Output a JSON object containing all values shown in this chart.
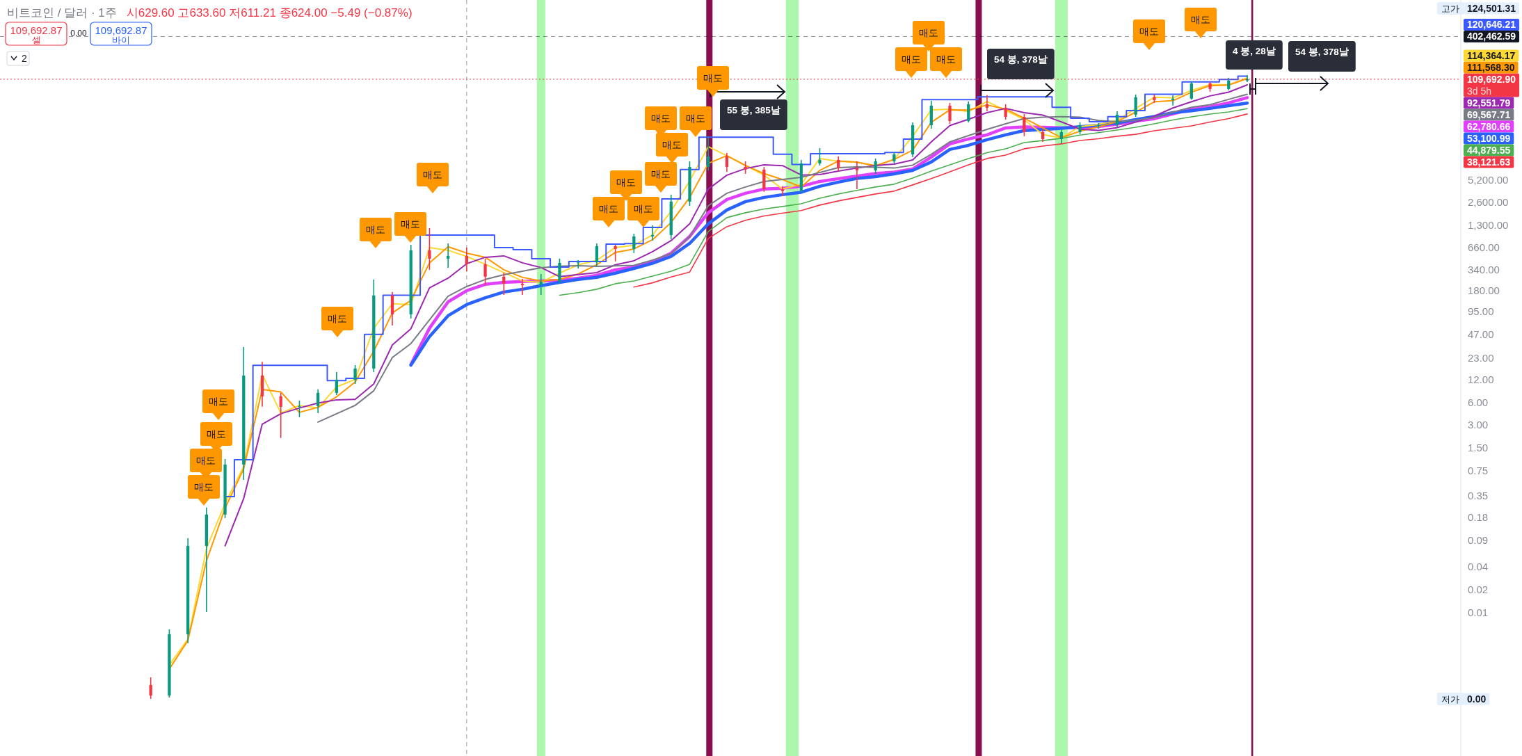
{
  "chart_data": {
    "type": "candlestick",
    "title": "비트코인 / 달러 · 1주",
    "subtitle": "시629.60 고633.60 저611.21 종624.00 −5.49 (−0.87%)",
    "categories": [
      null,
      null,
      null,
      null,
      null,
      null,
      null,
      null,
      null,
      null,
      null,
      null,
      null,
      null,
      null,
      null,
      null,
      null,
      null,
      null,
      null,
      null,
      null,
      null,
      null,
      null,
      null,
      null,
      null,
      null,
      null,
      null,
      null,
      null,
      null,
      null,
      null,
      null,
      null,
      null,
      null,
      null,
      null,
      null,
      null,
      null,
      null,
      null,
      null,
      null,
      null,
      null,
      null,
      null,
      null,
      null,
      null,
      null,
      null,
      null
    ],
    "ohlc": [
      [
        0.0011,
        0.00139,
        0.00072,
        0.0008
      ],
      [
        0.0008,
        0.00598,
        0.00075,
        0.00515
      ],
      [
        0.00515,
        0.0954,
        0.00392,
        0.0753
      ],
      [
        0.0753,
        0.242,
        0.0101,
        0.196
      ],
      [
        0.196,
        1.06,
        0.176,
        0.897
      ],
      [
        0.897,
        31.9,
        0.562,
        13.4
      ],
      [
        13.4,
        20.5,
        5.19,
        7.13
      ],
      [
        7.13,
        7.92,
        2.01,
        5.19
      ],
      [
        5.19,
        6.28,
        3.78,
        5.3
      ],
      [
        5.3,
        8.81,
        4.29,
        7.92
      ],
      [
        7.92,
        14.9,
        7.43,
        11.8
      ],
      [
        11.8,
        18.4,
        10.4,
        16.6
      ],
      [
        16.6,
        249,
        14.9,
        153
      ],
      [
        153,
        170,
        61.6,
        86.4
      ],
      [
        86.4,
        715,
        76.1,
        604
      ],
      [
        604,
        1188,
        334,
        469
      ],
      [
        469,
        746,
        356,
        510
      ],
      [
        510,
        657,
        320,
        396
      ],
      [
        396,
        469,
        210,
        271
      ],
      [
        271,
        307,
        156,
        219
      ],
      [
        219,
        254,
        156,
        210
      ],
      [
        210,
        294,
        156,
        233
      ],
      [
        233,
        469,
        219,
        413
      ],
      [
        413,
        449,
        348,
        418
      ],
      [
        418,
        746,
        379,
        685
      ],
      [
        685,
        715,
        431,
        630
      ],
      [
        630,
        1003,
        555,
        921
      ],
      [
        921,
        1293,
        812,
        961
      ],
      [
        961,
        3281,
        846,
        2656
      ],
      [
        2656,
        9050,
        2340,
        7640
      ],
      [
        7640,
        19400,
        6870,
        10490
      ],
      [
        10490,
        11660,
        6590,
        7640
      ],
      [
        7640,
        9050,
        6180,
        7030
      ],
      [
        7030,
        7640,
        3570,
        3886
      ],
      [
        3886,
        4230,
        3146,
        3650
      ],
      [
        3650,
        9440,
        3420,
        8490
      ],
      [
        8490,
        13510,
        7970,
        9440
      ],
      [
        9440,
        10490,
        6730,
        7330
      ],
      [
        7330,
        9050,
        3886,
        6870
      ],
      [
        6870,
        9850,
        6180,
        9050
      ],
      [
        9050,
        11910,
        8490,
        11170
      ],
      [
        11170,
        29560,
        10280,
        27150
      ],
      [
        27150,
        57030,
        24420,
        49170
      ],
      [
        49170,
        53500,
        28330,
        30830
      ],
      [
        30830,
        55830,
        29560,
        51290
      ],
      [
        51290,
        67520,
        41480,
        46130
      ],
      [
        46130,
        51290,
        32160,
        35000
      ],
      [
        35000,
        38090,
        19400,
        21970
      ],
      [
        21970,
        23920,
        16350,
        17800
      ],
      [
        17800,
        23920,
        15670,
        21970
      ],
      [
        21970,
        29560,
        20620,
        27150
      ],
      [
        27150,
        28930,
        24420,
        27300
      ],
      [
        27300,
        41480,
        25480,
        37270
      ],
      [
        37270,
        68970,
        35000,
        63400
      ],
      [
        63400,
        68970,
        53500,
        58240
      ],
      [
        58240,
        67520,
        49170,
        60780
      ],
      [
        60780,
        103000,
        59000,
        96680
      ],
      [
        96680,
        100840,
        75050,
        81660
      ],
      [
        81660,
        114600,
        78290,
        105250
      ],
      [
        105250,
        124501.31,
        100840,
        109692.9
      ]
    ],
    "colors": [
      "#f23645",
      "#089981",
      "#089981",
      "#089981",
      "#089981",
      "#089981",
      "#f23645",
      "#f23645",
      "#089981",
      "#089981",
      "#089981",
      "#089981",
      "#089981",
      "#f23645",
      "#089981",
      "#f23645",
      "#089981",
      "#f23645",
      "#f23645",
      "#f23645",
      "#f23645",
      "#089981",
      "#089981",
      "#089981",
      "#089981",
      "#f23645",
      "#089981",
      "#089981",
      "#089981",
      "#089981",
      "#089981",
      "#f23645",
      "#f23645",
      "#f23645",
      "#f23645",
      "#089981",
      "#089981",
      "#f23645",
      "#f23645",
      "#089981",
      "#089981",
      "#089981",
      "#089981",
      "#f23645",
      "#089981",
      "#f23645",
      "#f23645",
      "#f23645",
      "#f23645",
      "#089981",
      "#089981",
      "#089981",
      "#089981",
      "#089981",
      "#f23645",
      "#089981",
      "#089981",
      "#f23645",
      "#089981",
      "#089981"
    ],
    "series": [
      {
        "type": "line",
        "color": "#fdd835",
        "values": [
          null,
          0.00202,
          0.00444,
          0.0701,
          0.275,
          0.846,
          13.8,
          4.29,
          5.41,
          5.0,
          9.5,
          11.9,
          56.6,
          119,
          116,
          657,
          604,
          501,
          396,
          307,
          238,
          228,
          302,
          389,
          446,
          657,
          703,
          961,
          1977,
          5010,
          14110,
          10710,
          7970,
          5930,
          3890,
          4510,
          9850,
          9050,
          8860,
          7810,
          9650,
          19390,
          43300,
          44220,
          40930,
          55830,
          42390,
          32160,
          20420,
          18370,
          26020,
          27730,
          31470,
          45180,
          63400,
          62070,
          78290,
          93270,
          92690,
          114364.17
        ]
      },
      {
        "type": "line",
        "color": "#ff9800",
        "values": [
          null,
          0.00179,
          0.00426,
          0.0481,
          0.237,
          0.789,
          8.8,
          8.16,
          4.38,
          5.11,
          7.02,
          11.0,
          28.1,
          90.1,
          132,
          413,
          673,
          555,
          489,
          334,
          265,
          238,
          249,
          294,
          389,
          567,
          630,
          833,
          1409,
          3016,
          8490,
          10710,
          7970,
          6230,
          5190,
          4140,
          6870,
          9110,
          8800,
          7930,
          9540,
          12690,
          29560,
          43300,
          42930,
          50220,
          44220,
          33550,
          24940,
          18560,
          22590,
          25810,
          30180,
          40330,
          55330,
          57030,
          73800,
          90190,
          91850,
          111568.3
        ]
      },
      {
        "type": "line",
        "color": "#9c27b0",
        "values": [
          null,
          null,
          null,
          null,
          0.0757,
          0.318,
          3.06,
          4.2,
          5.0,
          5.82,
          6.41,
          6.51,
          10.4,
          34.0,
          55.7,
          193,
          259,
          402,
          489,
          510,
          413,
          358,
          271,
          289,
          307,
          389,
          440,
          579,
          812,
          1351,
          3890,
          5930,
          7250,
          8140,
          7930,
          5960,
          6050,
          6730,
          7370,
          7970,
          8310,
          9440,
          16350,
          26870,
          32430,
          39730,
          45180,
          39730,
          36900,
          29990,
          24070,
          23170,
          25170,
          29740,
          35730,
          45760,
          55330,
          66100,
          74090,
          92551.79
        ]
      },
      {
        "type": "line",
        "color": "#787b86",
        "values": [
          null,
          null,
          null,
          null,
          null,
          null,
          null,
          null,
          null,
          3.26,
          4.2,
          5.41,
          8.44,
          23.2,
          35.5,
          72.9,
          150,
          201,
          249,
          288,
          320,
          356,
          373,
          379,
          371,
          376,
          383,
          449,
          546,
          921,
          2340,
          3420,
          4140,
          4900,
          5220,
          5560,
          6450,
          7480,
          7640,
          7560,
          7370,
          8050,
          11170,
          16350,
          19780,
          23920,
          28330,
          33200,
          34630,
          35070,
          34630,
          31350,
          30180,
          31640,
          34240,
          40250,
          46840,
          50670,
          59490,
          69567.71
        ]
      },
      {
        "type": "line",
        "color": "#e040fb",
        "values": [
          null,
          null,
          null,
          null,
          null,
          null,
          null,
          null,
          null,
          null,
          null,
          null,
          null,
          null,
          18.8,
          56.6,
          126,
          177,
          215,
          228,
          234,
          238,
          243,
          259,
          282,
          334,
          363,
          423,
          555,
          921,
          1894,
          2830,
          3420,
          3890,
          3990,
          4230,
          4900,
          5340,
          5770,
          6250,
          6520,
          7170,
          10280,
          15350,
          17800,
          20220,
          24940,
          25750,
          25480,
          25060,
          25210,
          26020,
          28020,
          30830,
          33050,
          38170,
          44220,
          47630,
          53500,
          62780.66
        ]
      },
      {
        "type": "line",
        "color": "#2962ff",
        "values": [
          null,
          null,
          null,
          null,
          null,
          null,
          null,
          null,
          null,
          null,
          null,
          null,
          null,
          null,
          18.4,
          43.9,
          82.8,
          116,
          143,
          170,
          185,
          206,
          228,
          249,
          266,
          302,
          348,
          406,
          501,
          746,
          1351,
          2060,
          2656,
          3016,
          3281,
          3530,
          4230,
          4800,
          5370,
          5680,
          6180,
          6870,
          8860,
          12960,
          14710,
          17420,
          20220,
          23030,
          23820,
          24630,
          25920,
          27150,
          29060,
          32160,
          35440,
          39730,
          42130,
          45180,
          48960,
          53100.99
        ]
      },
      {
        "type": "line",
        "color": "#4caf50",
        "values": [
          null,
          null,
          null,
          null,
          null,
          null,
          null,
          null,
          null,
          null,
          null,
          null,
          null,
          null,
          null,
          null,
          null,
          null,
          null,
          null,
          null,
          null,
          154,
          167,
          185,
          219,
          238,
          276,
          320,
          396,
          1068,
          1633,
          1894,
          2120,
          2290,
          2490,
          2950,
          3350,
          3730,
          4140,
          4510,
          5440,
          6730,
          8140,
          9850,
          11780,
          13240,
          16000,
          16980,
          18180,
          20070,
          21610,
          23420,
          25480,
          28330,
          31820,
          35000,
          38090,
          40580,
          44879.55
        ]
      },
      {
        "type": "line",
        "color": "#f23645",
        "values": [
          null,
          null,
          null,
          null,
          null,
          null,
          null,
          null,
          null,
          null,
          null,
          null,
          null,
          null,
          null,
          null,
          null,
          null,
          null,
          null,
          null,
          null,
          null,
          null,
          null,
          null,
          198,
          225,
          268,
          312,
          865,
          1240,
          1502,
          1715,
          1867,
          2020,
          2390,
          2712,
          3016,
          3350,
          3650,
          4412,
          5340,
          6590,
          8140,
          9850,
          10940,
          13240,
          14400,
          15350,
          17060,
          17980,
          19390,
          20550,
          22920,
          24690,
          26580,
          29800,
          33200,
          38121.63
        ]
      },
      {
        "type": "step",
        "color": "#3d5afe",
        "values": [
          null,
          null,
          null,
          null,
          0.339,
          1.04,
          18.3,
          18.3,
          18.3,
          18.3,
          11.5,
          12.3,
          46.8,
          154,
          154,
          961,
          961,
          961,
          961,
          657,
          617,
          469,
          363,
          431,
          431,
          730,
          740,
          1213,
          2890,
          7030,
          18840,
          18840,
          18840,
          18840,
          11240,
          8200,
          11420,
          11420,
          11420,
          11420,
          11830,
          17800,
          59110,
          59110,
          59110,
          64310,
          64310,
          64310,
          64310,
          46840,
          33550,
          30180,
          35070,
          42390,
          69430,
          69430,
          101090,
          101090,
          109070,
          120646.21
        ]
      }
    ],
    "log": true,
    "ylim": [
      0.000127,
      1220000
    ],
    "yticks": [
      {
        "value": 5200,
        "label": "5,200.00"
      },
      {
        "value": 2600,
        "label": "2,600.00"
      },
      {
        "value": 1300,
        "label": "1,300.00"
      },
      {
        "value": 660,
        "label": "660.00"
      },
      {
        "value": 340,
        "label": "340.00"
      },
      {
        "value": 180,
        "label": "180.00"
      },
      {
        "value": 95,
        "label": "95.00"
      },
      {
        "value": 47,
        "label": "47.00"
      },
      {
        "value": 23,
        "label": "23.00"
      },
      {
        "value": 12,
        "label": "12.00"
      },
      {
        "value": 6,
        "label": "6.00"
      },
      {
        "value": 3,
        "label": "3.00"
      },
      {
        "value": 1.5,
        "label": "1.50"
      },
      {
        "value": 0.75,
        "label": "0.75"
      },
      {
        "value": 0.35,
        "label": "0.35"
      },
      {
        "value": 0.18,
        "label": "0.18"
      },
      {
        "value": 0.09,
        "label": "0.09"
      },
      {
        "value": 0.04,
        "label": "0.04"
      },
      {
        "value": 0.02,
        "label": "0.02"
      },
      {
        "value": 0.01,
        "label": "0.01"
      }
    ],
    "tick_labels": "y",
    "ref_lines": [
      {
        "axis": "y",
        "value": 109692.9,
        "label": "109,692.90",
        "color": "#f23645",
        "line_style": "dotted"
      },
      {
        "axis": "y",
        "value": 402462.59,
        "label": "402,462.59",
        "color": "#131722",
        "line_style": "dashed"
      }
    ],
    "annotations": [
      "109,692.87",
      "셀",
      "0.00",
      "109,692.87",
      "바이",
      "2",
      "3d 5h",
      "고가",
      "124,501.31",
      "저가",
      "0.00",
      "55 봉, 385날",
      "54 봉, 378날",
      "4 봉, 28날",
      "54 봉, 378날",
      "120,646.21",
      "114,364.17",
      "111,568.30",
      "92,551.79",
      "69,567.71",
      "62,780.66",
      "53,100.99",
      "44,879.55",
      "38,121.63",
      "매도",
      "매도",
      "매도",
      "매도",
      "매도",
      "매도",
      "매도",
      "매도",
      "매도",
      "매도",
      "매도",
      "매도",
      "매도",
      "매도",
      "매도",
      "매도",
      "매도",
      "매도",
      "매도",
      "매도",
      "매도"
    ]
  }
}
